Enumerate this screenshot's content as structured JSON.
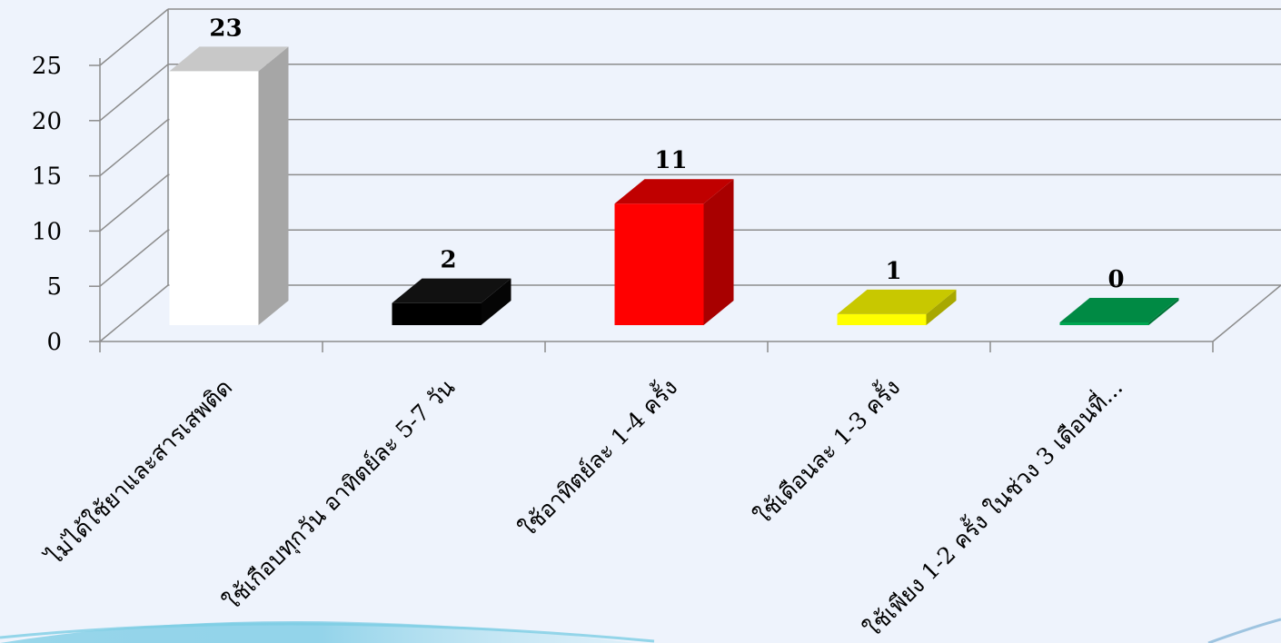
{
  "chart_data": {
    "type": "bar",
    "style": "3d-column",
    "categories": [
      "ไม่ได้ใช้ยาและสารเสพติด",
      "ใช้เกือบทุกวัน อาทิตย์ละ 5-7 วัน",
      "ใช้อาทิตย์ละ 1-4 ครั้ง",
      "ใช้เดือนละ 1-3 ครั้ง",
      "ใช้เพียง 1-2 ครั้ง ในช่วง 3 เดือนที่..."
    ],
    "values": [
      23,
      2,
      11,
      1,
      0
    ],
    "data_labels": [
      "23",
      "2",
      "11",
      "1",
      "0"
    ],
    "y_ticks": [
      "0",
      "5",
      "10",
      "15",
      "20",
      "25"
    ],
    "ylim": [
      0,
      25
    ],
    "grid": true,
    "legend": "none",
    "colors": {
      "bars": [
        {
          "front": "#ffffff",
          "top": "#c8c8c8",
          "side": "#a6a6a6"
        },
        {
          "front": "#000000",
          "top": "#111111",
          "side": "#050505"
        },
        {
          "front": "#ff0000",
          "top": "#c00000",
          "side": "#a80000"
        },
        {
          "front": "#ffff00",
          "top": "#c8c800",
          "side": "#a8a800"
        },
        {
          "front": "#00a651",
          "top": "#008a44",
          "side": "#007538"
        }
      ],
      "grid": "#8c8c8c",
      "background": "#eef3fc"
    }
  }
}
